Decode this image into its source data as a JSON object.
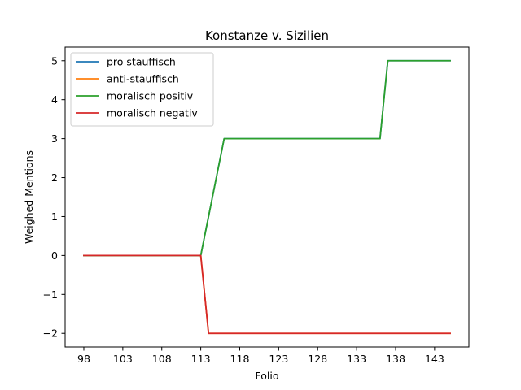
{
  "chart_data": {
    "type": "line",
    "title": "Konstanze v. Sizilien",
    "xlabel": "Folio",
    "ylabel": "Weighed Mentions",
    "xlim": [
      95.6,
      147.4
    ],
    "ylim": [
      -2.35,
      5.35
    ],
    "xticks": [
      98,
      103,
      108,
      113,
      118,
      123,
      128,
      133,
      138,
      143
    ],
    "yticks": [
      -2,
      -1,
      0,
      1,
      2,
      3,
      4,
      5
    ],
    "ytick_labels": [
      "−2",
      "−1",
      "0",
      "1",
      "2",
      "3",
      "4",
      "5"
    ],
    "grid": false,
    "legend_position": "top-left",
    "series": [
      {
        "name": "pro stauffisch",
        "color": "#1f77b4",
        "x": [
          98,
          113,
          116,
          136,
          137,
          145
        ],
        "y": [
          0,
          0,
          3,
          3,
          5,
          5
        ]
      },
      {
        "name": "anti-stauffisch",
        "color": "#ff7f0e",
        "x": [
          98,
          113,
          114,
          145
        ],
        "y": [
          0,
          0,
          -2,
          -2
        ]
      },
      {
        "name": "moralisch positiv",
        "color": "#2ca02c",
        "x": [
          98,
          113,
          116,
          136,
          137,
          145
        ],
        "y": [
          0,
          0,
          3,
          3,
          5,
          5
        ]
      },
      {
        "name": "moralisch negativ",
        "color": "#d62728",
        "x": [
          98,
          113,
          114,
          145
        ],
        "y": [
          0,
          0,
          -2,
          -2
        ]
      }
    ]
  }
}
